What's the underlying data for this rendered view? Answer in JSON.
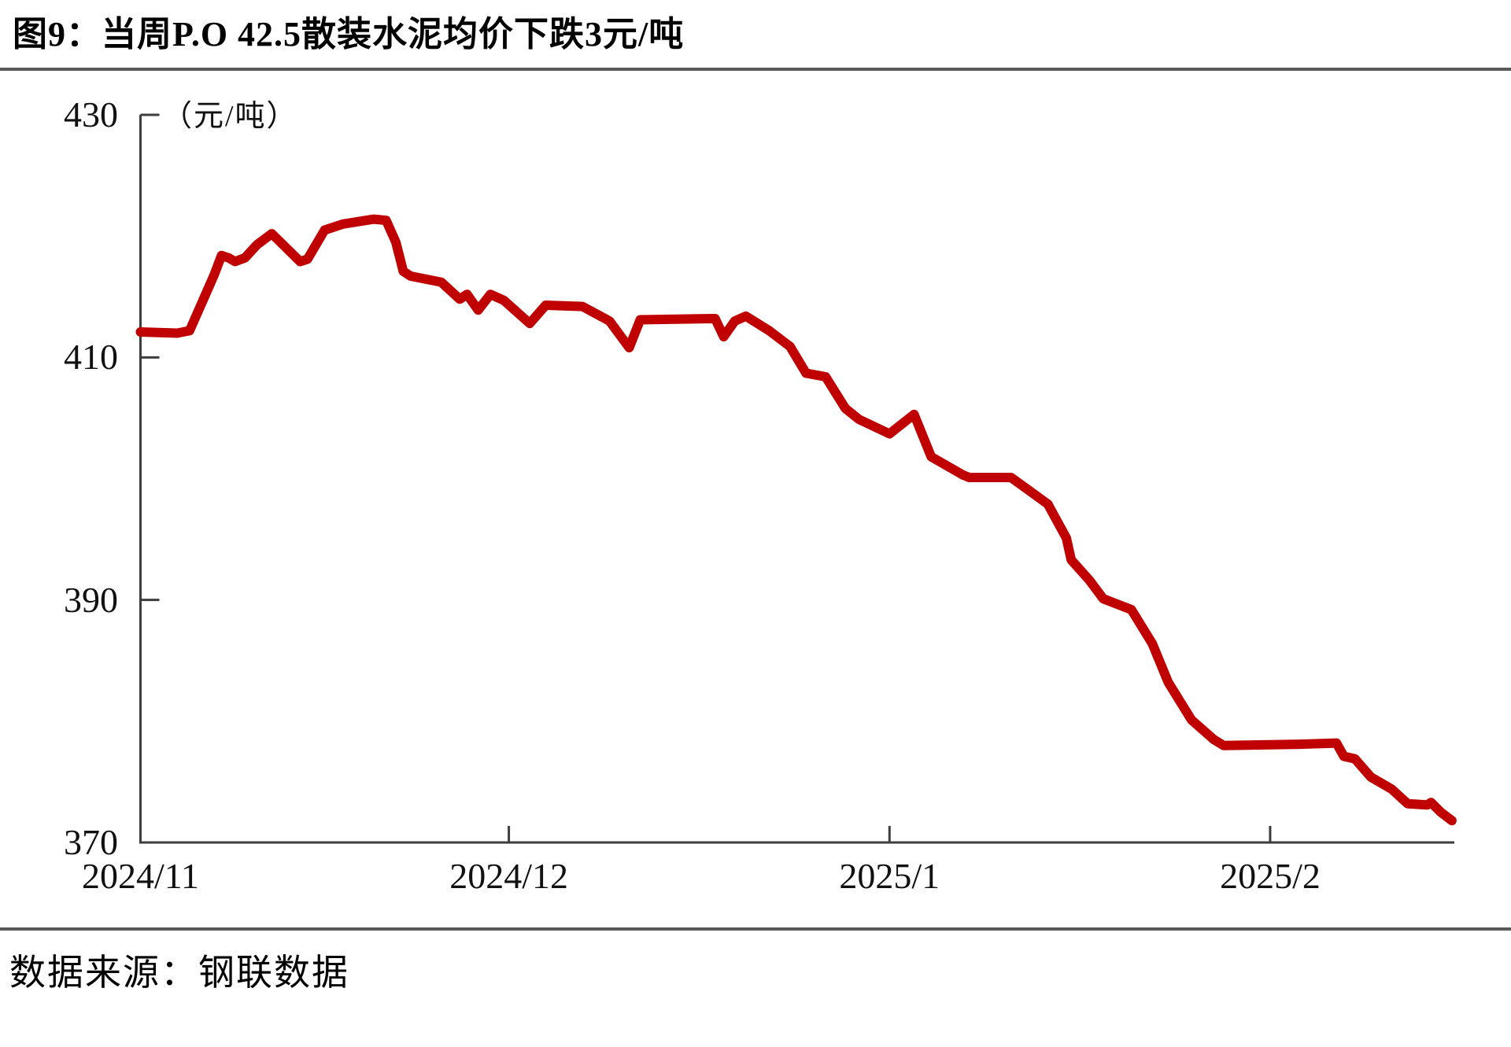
{
  "title": "图9：当周P.O 42.5散装水泥均价下跌3元/吨",
  "source": "数据来源：钢联数据",
  "chart_data": {
    "type": "line",
    "title": "当周P.O 42.5散装水泥均价下跌3元/吨",
    "ylabel": "（元/吨）",
    "xlabel": "",
    "ylim": [
      370,
      430
    ],
    "grid": "off",
    "legend": "none",
    "line_color": "#c00000",
    "axis_color": "#3d3d3d",
    "x_domain_days": 107,
    "yticks": [
      {
        "label": "430",
        "value": 430
      },
      {
        "label": "410",
        "value": 410
      },
      {
        "label": "390",
        "value": 390
      },
      {
        "label": "370",
        "value": 370
      }
    ],
    "xticks": [
      {
        "label": "2024/11",
        "day": 0
      },
      {
        "label": "2024/12",
        "day": 30
      },
      {
        "label": "2025/1",
        "day": 61
      },
      {
        "label": "2025/2",
        "day": 92
      }
    ],
    "series": [
      {
        "name": "P.O 42.5散装水泥均价",
        "unit": "元/吨",
        "points": [
          [
            0,
            412.1
          ],
          [
            3,
            412.0
          ],
          [
            4,
            412.2
          ],
          [
            5,
            414.5
          ],
          [
            6,
            416.8
          ],
          [
            6.6,
            418.4
          ],
          [
            7.2,
            418.2
          ],
          [
            7.7,
            417.9
          ],
          [
            8.5,
            418.2
          ],
          [
            9.5,
            419.3
          ],
          [
            10.7,
            420.2
          ],
          [
            11.5,
            419.4
          ],
          [
            13,
            417.9
          ],
          [
            13.6,
            418.1
          ],
          [
            15,
            420.5
          ],
          [
            16.5,
            421.0
          ],
          [
            19,
            421.4
          ],
          [
            20,
            421.3
          ],
          [
            20.8,
            419.5
          ],
          [
            21.4,
            417.1
          ],
          [
            22,
            416.7
          ],
          [
            24.5,
            416.2
          ],
          [
            26,
            414.8
          ],
          [
            26.6,
            415.2
          ],
          [
            27.5,
            413.9
          ],
          [
            28.5,
            415.2
          ],
          [
            29.6,
            414.7
          ],
          [
            31.7,
            412.8
          ],
          [
            33,
            414.3
          ],
          [
            36,
            414.2
          ],
          [
            38.2,
            413.0
          ],
          [
            39.8,
            410.8
          ],
          [
            40.7,
            413.1
          ],
          [
            46.8,
            413.2
          ],
          [
            47.5,
            411.7
          ],
          [
            48.4,
            413.0
          ],
          [
            49.3,
            413.4
          ],
          [
            51.2,
            412.2
          ],
          [
            52.9,
            410.9
          ],
          [
            54.2,
            408.7
          ],
          [
            55.8,
            408.4
          ],
          [
            57.4,
            405.8
          ],
          [
            58.5,
            404.9
          ],
          [
            61,
            403.7
          ],
          [
            63,
            405.3
          ],
          [
            64.4,
            401.8
          ],
          [
            67,
            400.3
          ],
          [
            67.5,
            400.1
          ],
          [
            70.9,
            400.1
          ],
          [
            72.4,
            399.0
          ],
          [
            73.9,
            397.9
          ],
          [
            75.4,
            395.1
          ],
          [
            75.8,
            393.3
          ],
          [
            77.3,
            391.6
          ],
          [
            78.4,
            390.1
          ],
          [
            80.7,
            389.2
          ],
          [
            82.4,
            386.4
          ],
          [
            83.7,
            383.2
          ],
          [
            85.6,
            380.1
          ],
          [
            87.4,
            378.5
          ],
          [
            88.2,
            378.0
          ],
          [
            94.4,
            378.1
          ],
          [
            97.4,
            378.2
          ],
          [
            98,
            377.1
          ],
          [
            98.9,
            376.9
          ],
          [
            100.2,
            375.4
          ],
          [
            101.9,
            374.4
          ],
          [
            103.2,
            373.2
          ],
          [
            104.8,
            373.1
          ],
          [
            105.1,
            373.3
          ],
          [
            105.9,
            372.5
          ],
          [
            106.8,
            371.8
          ]
        ]
      }
    ]
  }
}
